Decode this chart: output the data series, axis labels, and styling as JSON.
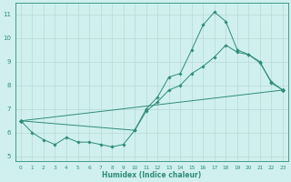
{
  "xlabel": "Humidex (Indice chaleur)",
  "x": [
    0,
    1,
    2,
    3,
    4,
    5,
    6,
    7,
    8,
    9,
    10,
    11,
    12,
    13,
    14,
    15,
    16,
    17,
    18,
    19,
    20,
    21,
    22,
    23
  ],
  "line1_y": [
    6.5,
    6.0,
    5.7,
    5.5,
    5.8,
    5.6,
    5.6,
    5.5,
    5.4,
    5.5,
    6.1,
    7.0,
    7.5,
    8.35,
    8.5,
    9.5,
    10.55,
    11.1,
    10.7,
    9.5,
    9.3,
    9.0,
    8.1,
    7.8
  ],
  "line2_x": [
    0,
    10,
    11,
    12,
    13,
    14,
    15,
    16,
    17,
    18,
    19,
    20,
    21,
    22,
    23
  ],
  "line2_y": [
    6.5,
    6.1,
    6.9,
    7.3,
    7.8,
    8.0,
    8.5,
    8.8,
    9.2,
    9.7,
    9.4,
    9.3,
    8.95,
    8.15,
    7.8
  ],
  "line3_x": [
    0,
    23
  ],
  "line3_y": [
    6.5,
    7.8
  ],
  "color": "#2e8b7a",
  "background": "#cff0ee",
  "grid_color": "#b8d8d5",
  "ylim": [
    4.8,
    11.5
  ],
  "yticks": [
    5,
    6,
    7,
    8,
    9,
    10,
    11
  ],
  "xlim": [
    -0.5,
    23.5
  ],
  "xticks": [
    0,
    1,
    2,
    3,
    4,
    5,
    6,
    7,
    8,
    9,
    10,
    11,
    12,
    13,
    14,
    15,
    16,
    17,
    18,
    19,
    20,
    21,
    22,
    23
  ]
}
